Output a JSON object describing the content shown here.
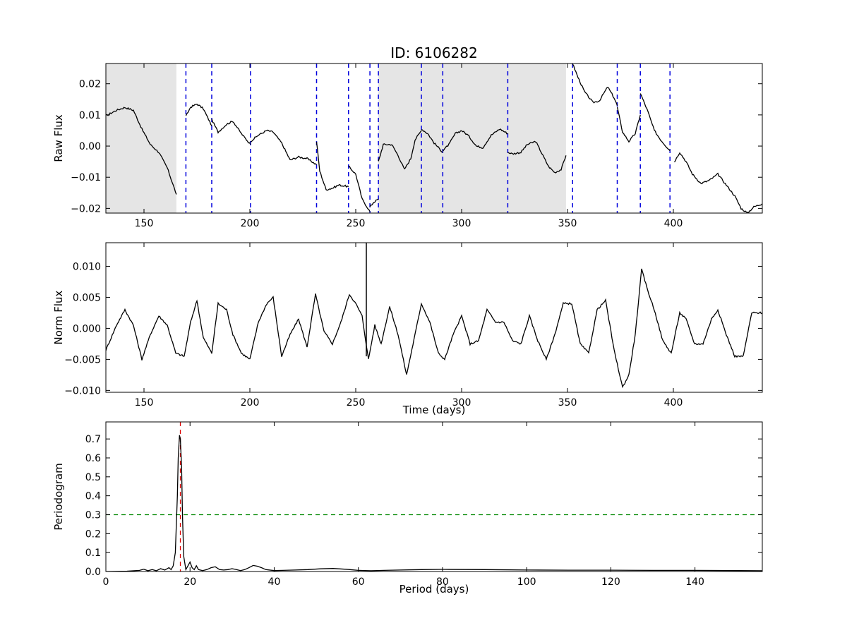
{
  "figure": {
    "title": "ID: 6106282"
  },
  "chart_data": [
    {
      "id": "raw",
      "type": "line",
      "title": "ID: 6106282",
      "xlabel": "",
      "ylabel": "Raw Flux",
      "xlim": [
        132,
        442
      ],
      "ylim": [
        -0.0215,
        0.0265
      ],
      "xticks": [
        150,
        200,
        250,
        300,
        350,
        400
      ],
      "xtick_labels": [
        "150",
        "200",
        "250",
        "300",
        "350",
        "400"
      ],
      "yticks": [
        -0.02,
        -0.01,
        0.0,
        0.01,
        0.02
      ],
      "ytick_labels": [
        "−0.02",
        "−0.01",
        "0.00",
        "0.01",
        "0.02"
      ],
      "grid": false,
      "shaded_regions": [
        [
          132,
          165.3
        ],
        [
          260.7,
          349.3
        ]
      ],
      "quarter_boundaries": [
        169.8,
        182.0,
        200.3,
        231.5,
        246.6,
        256.7,
        260.7,
        281.0,
        291.1,
        321.8,
        352.4,
        373.5,
        384.4,
        398.4
      ],
      "segments": [
        {
          "x": [
            132,
            137,
            141,
            145,
            149,
            153,
            157,
            161,
            165.3
          ],
          "y": [
            0.0097,
            0.0115,
            0.0124,
            0.0115,
            0.0055,
            0.0005,
            -0.002,
            -0.007,
            -0.0155
          ]
        },
        {
          "x": [
            169.8,
            172,
            175,
            178,
            182
          ],
          "y": [
            0.0095,
            0.0125,
            0.0135,
            0.012,
            0.0065
          ]
        },
        {
          "x": [
            182,
            185,
            189,
            192,
            196,
            200.3
          ],
          "y": [
            0.0085,
            0.0045,
            0.007,
            0.008,
            0.004,
            0.0005
          ]
        },
        {
          "x": [
            200.3,
            204,
            208,
            211,
            215,
            219,
            223,
            227,
            231.5
          ],
          "y": [
            0.0015,
            0.0035,
            0.005,
            0.0045,
            0.001,
            -0.0045,
            -0.0035,
            -0.004,
            -0.006
          ]
        },
        {
          "x": [
            231.5,
            233,
            236,
            239,
            242,
            246.6
          ],
          "y": [
            0.0015,
            -0.008,
            -0.014,
            -0.0135,
            -0.0125,
            -0.013
          ]
        },
        {
          "x": [
            246.6,
            250,
            253,
            256.7
          ],
          "y": [
            -0.0065,
            -0.009,
            -0.017,
            -0.021
          ]
        },
        {
          "x": [
            256.7,
            258.5,
            260.7
          ],
          "y": [
            -0.0195,
            -0.018,
            -0.017
          ]
        },
        {
          "x": [
            260.7,
            263,
            267,
            270,
            273,
            276,
            278,
            281
          ],
          "y": [
            -0.005,
            0.0005,
            0.0005,
            -0.003,
            -0.0075,
            -0.004,
            0.002,
            0.005
          ]
        },
        {
          "x": [
            281,
            284,
            287,
            291.1
          ],
          "y": [
            0.0055,
            0.004,
            0.001,
            -0.002
          ]
        },
        {
          "x": [
            291.1,
            294,
            297,
            300,
            303,
            307,
            310,
            314,
            318,
            321.8
          ],
          "y": [
            -0.0015,
            0.0005,
            0.004,
            0.005,
            0.0035,
            0.0,
            -0.0005,
            0.0035,
            0.0055,
            0.004
          ]
        },
        {
          "x": [
            321.8,
            324,
            328,
            331,
            335,
            338,
            341,
            344,
            347,
            349.3
          ],
          "y": [
            -0.002,
            -0.0025,
            -0.002,
            0.0005,
            0.0015,
            -0.0025,
            -0.0065,
            -0.0085,
            -0.0075,
            -0.003
          ]
        },
        {
          "x": [
            352.4,
            355,
            358,
            362,
            365,
            369,
            372,
            373.5
          ],
          "y": [
            0.0265,
            0.022,
            0.0175,
            0.014,
            0.0145,
            0.019,
            0.0155,
            0.013
          ]
        },
        {
          "x": [
            373.5,
            376,
            379,
            382,
            384.4
          ],
          "y": [
            0.0125,
            0.0045,
            0.0015,
            0.004,
            0.01
          ]
        },
        {
          "x": [
            384.4,
            388,
            391,
            394,
            398.4
          ],
          "y": [
            0.017,
            0.011,
            0.005,
            0.002,
            -0.0015
          ]
        },
        {
          "x": [
            400.5,
            403,
            406,
            409,
            413,
            417,
            421,
            425,
            429,
            432,
            435,
            438,
            442
          ],
          "y": [
            -0.005,
            -0.002,
            -0.005,
            -0.009,
            -0.012,
            -0.011,
            -0.009,
            -0.0125,
            -0.016,
            -0.02,
            -0.0215,
            -0.0195,
            -0.0185
          ]
        }
      ]
    },
    {
      "id": "norm",
      "type": "line",
      "xlabel": "Time (days)",
      "ylabel": "Norm Flux",
      "xlim": [
        132,
        442
      ],
      "ylim": [
        -0.0103,
        0.0138
      ],
      "xticks": [
        150,
        200,
        250,
        300,
        350,
        400
      ],
      "xtick_labels": [
        "150",
        "200",
        "250",
        "300",
        "350",
        "400"
      ],
      "yticks": [
        -0.01,
        -0.005,
        0.0,
        0.005,
        0.01
      ],
      "ytick_labels": [
        "−0.010",
        "−0.005",
        "0.000",
        "0.005",
        "0.010"
      ],
      "grid": false,
      "x": [
        132,
        137,
        141,
        145,
        149,
        153,
        157,
        161,
        165,
        169,
        172,
        175,
        178,
        182,
        185,
        189,
        192,
        196,
        200,
        204,
        208,
        211,
        215,
        219,
        223,
        227,
        231,
        235,
        239,
        243,
        247,
        250,
        253,
        256,
        259,
        262,
        266,
        270,
        274,
        278,
        281,
        285,
        289,
        292,
        296,
        300,
        304,
        308,
        312,
        316,
        320,
        324,
        328,
        332,
        336,
        340,
        344,
        348,
        352,
        356,
        360,
        364,
        368,
        372,
        376,
        379,
        382,
        385,
        388,
        391,
        395,
        399,
        403,
        406,
        410,
        414,
        418,
        421,
        425,
        429,
        433,
        437,
        442
      ],
      "y": [
        -0.0035,
        0.0005,
        0.003,
        0.0005,
        -0.005,
        -0.001,
        0.002,
        0.0005,
        -0.004,
        -0.0045,
        0.001,
        0.0045,
        -0.0015,
        -0.004,
        0.004,
        0.003,
        -0.001,
        -0.004,
        -0.005,
        0.001,
        0.004,
        0.005,
        -0.0045,
        -0.001,
        0.0015,
        -0.003,
        0.0055,
        -0.0005,
        -0.0025,
        0.001,
        0.0055,
        0.004,
        0.002,
        -0.005,
        0.0005,
        -0.0025,
        0.0035,
        -0.001,
        -0.0075,
        -0.001,
        0.004,
        0.001,
        -0.004,
        -0.005,
        -0.001,
        0.002,
        -0.0025,
        -0.002,
        0.003,
        0.001,
        0.001,
        -0.002,
        -0.0025,
        0.002,
        -0.002,
        -0.005,
        -0.001,
        0.004,
        0.004,
        -0.0025,
        -0.004,
        0.003,
        0.0045,
        -0.0035,
        -0.0095,
        -0.0075,
        -0.001,
        0.0095,
        0.006,
        0.003,
        -0.002,
        -0.004,
        0.0025,
        0.0015,
        -0.0025,
        -0.0025,
        0.0015,
        0.003,
        -0.001,
        -0.0045,
        -0.0045,
        0.0025,
        0.0025
      ],
      "spike": {
        "x": 255.0,
        "y_top": 0.0138,
        "y_bottom": -0.0045
      }
    },
    {
      "id": "pgram",
      "type": "line",
      "xlabel": "Period (days)",
      "ylabel": "Periodogram",
      "xlim": [
        0,
        156
      ],
      "ylim": [
        0,
        0.79
      ],
      "xticks": [
        0,
        20,
        40,
        60,
        80,
        100,
        120,
        140
      ],
      "xtick_labels": [
        "0",
        "20",
        "40",
        "60",
        "80",
        "100",
        "120",
        "140"
      ],
      "yticks": [
        0.0,
        0.1,
        0.2,
        0.3,
        0.4,
        0.5,
        0.6,
        0.7
      ],
      "ytick_labels": [
        "0.0",
        "0.1",
        "0.2",
        "0.3",
        "0.4",
        "0.5",
        "0.6",
        "0.7"
      ],
      "grid": false,
      "peak_period": 17.7,
      "threshold": 0.3,
      "x": [
        0,
        5,
        8,
        9,
        10,
        11,
        12,
        13,
        14,
        15,
        15.5,
        16,
        16.5,
        17,
        17.2,
        17.5,
        17.7,
        18,
        18.2,
        18.5,
        19,
        19.5,
        20,
        20.5,
        21,
        21.5,
        22,
        23,
        24,
        25,
        26,
        27,
        28,
        29,
        30,
        31,
        32,
        33,
        34,
        35,
        36,
        37,
        38,
        40,
        42,
        45,
        48,
        51,
        54,
        57,
        60,
        63,
        66,
        70,
        75,
        80,
        90,
        100,
        110,
        120,
        130,
        140,
        150,
        156
      ],
      "y": [
        0,
        0.002,
        0.006,
        0.012,
        0.004,
        0.01,
        0.004,
        0.015,
        0.008,
        0.02,
        0.01,
        0.03,
        0.1,
        0.4,
        0.6,
        0.72,
        0.7,
        0.55,
        0.3,
        0.08,
        0.01,
        0.03,
        0.05,
        0.02,
        0.01,
        0.03,
        0.01,
        0.005,
        0.01,
        0.02,
        0.025,
        0.01,
        0.008,
        0.01,
        0.015,
        0.01,
        0.005,
        0.01,
        0.02,
        0.032,
        0.028,
        0.02,
        0.01,
        0.005,
        0.006,
        0.008,
        0.01,
        0.014,
        0.016,
        0.012,
        0.006,
        0.004,
        0.006,
        0.008,
        0.01,
        0.011,
        0.01,
        0.008,
        0.007,
        0.007,
        0.006,
        0.006,
        0.005,
        0.004
      ]
    }
  ]
}
